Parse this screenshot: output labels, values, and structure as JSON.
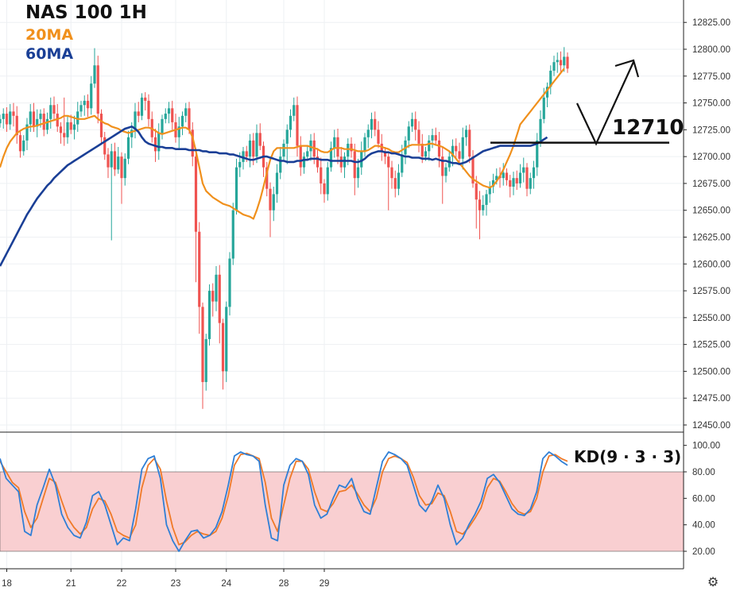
{
  "chart_title": "NAS 100 1H",
  "legend": [
    {
      "label": "20MA",
      "color": "#f0901c"
    },
    {
      "label": "60MA",
      "color": "#1a3f96"
    }
  ],
  "annotation_level": "12710",
  "kd_label": "KD(9 · 3 · 3)",
  "settings_icon": "gear-icon",
  "colors": {
    "up": "#26a69a",
    "down": "#ef5350",
    "ma20": "#f0901c",
    "ma60": "#1a3f96",
    "k_line": "#2f7fd6",
    "d_line": "#f07a28",
    "kd_zone": "#f9cfd1"
  },
  "chart_data": [
    {
      "type": "candlestick",
      "title": "NAS 100 1H",
      "y_ticks": [
        "12825.00",
        "12800.00",
        "12775.00",
        "12750.00",
        "12725.00",
        "12700.00",
        "12675.00",
        "12650.00",
        "12625.00",
        "12600.00",
        "12575.00",
        "12550.00",
        "12525.00",
        "12500.00",
        "12475.00",
        "12450.00"
      ],
      "ylim": [
        12446,
        12845
      ],
      "x_ticks": [
        {
          "label": "18",
          "t": 2
        },
        {
          "label": "21",
          "t": 21
        },
        {
          "label": "22",
          "t": 36
        },
        {
          "label": "23",
          "t": 52
        },
        {
          "label": "24",
          "t": 67
        },
        {
          "label": "28",
          "t": 84
        },
        {
          "label": "29",
          "t": 96
        }
      ],
      "closes": [
        12735,
        12740,
        12730,
        12742,
        12738,
        12720,
        12705,
        12715,
        12730,
        12742,
        12728,
        12735,
        12740,
        12725,
        12735,
        12748,
        12740,
        12728,
        12722,
        12718,
        12732,
        12725,
        12730,
        12742,
        12748,
        12752,
        12745,
        12768,
        12785,
        12740,
        12718,
        12702,
        12690,
        12705,
        12688,
        12700,
        12680,
        12698,
        12718,
        12725,
        12742,
        12738,
        12755,
        12752,
        12735,
        12718,
        12705,
        12722,
        12735,
        12740,
        12745,
        12732,
        12718,
        12728,
        12738,
        12745,
        12725,
        12700,
        12630,
        12560,
        12490,
        12530,
        12575,
        12565,
        12590,
        12545,
        12500,
        12560,
        12605,
        12650,
        12690,
        12695,
        12705,
        12700,
        12715,
        12700,
        12722,
        12710,
        12690,
        12670,
        12650,
        12665,
        12685,
        12700,
        12712,
        12725,
        12738,
        12748,
        12710,
        12690,
        12700,
        12705,
        12715,
        12700,
        12690,
        12675,
        12665,
        12690,
        12708,
        12718,
        12700,
        12690,
        12700,
        12712,
        12705,
        12680,
        12690,
        12705,
        12718,
        12725,
        12735,
        12725,
        12712,
        12705,
        12700,
        12690,
        12680,
        12670,
        12685,
        12702,
        12715,
        12728,
        12735,
        12725,
        12712,
        12700,
        12705,
        12715,
        12720,
        12715,
        12700,
        12682,
        12690,
        12700,
        12710,
        12705,
        12698,
        12718,
        12725,
        12700,
        12675,
        12660,
        12650,
        12655,
        12665,
        12672,
        12678,
        12682,
        12680,
        12685,
        12678,
        12672,
        12680,
        12675,
        12685,
        12690,
        12670,
        12680,
        12690,
        12715,
        12735,
        12755,
        12765,
        12780,
        12788,
        12790,
        12785,
        12793,
        12782
      ],
      "ma20": [
        12690,
        12700,
        12708,
        12714,
        12718,
        12722,
        12724,
        12726,
        12727,
        12728,
        12728,
        12729,
        12730,
        12731,
        12732,
        12733,
        12734,
        12735,
        12736,
        12738,
        12738,
        12737,
        12736,
        12735,
        12735,
        12735,
        12736,
        12737,
        12738,
        12735,
        12733,
        12731,
        12730,
        12728,
        12727,
        12726,
        12724,
        12723,
        12722,
        12723,
        12724,
        12725,
        12726,
        12727,
        12727,
        12726,
        12724,
        12722,
        12721,
        12722,
        12723,
        12724,
        12725,
        12726,
        12727,
        12727,
        12725,
        12718,
        12705,
        12690,
        12675,
        12668,
        12665,
        12662,
        12660,
        12658,
        12656,
        12655,
        12654,
        12652,
        12650,
        12648,
        12646,
        12645,
        12644,
        12642,
        12650,
        12660,
        12672,
        12685,
        12697,
        12705,
        12708,
        12708,
        12708,
        12708,
        12708,
        12708,
        12709,
        12710,
        12710,
        12710,
        12709,
        12708,
        12707,
        12705,
        12704,
        12704,
        12706,
        12708,
        12708,
        12708,
        12707,
        12707,
        12707,
        12706,
        12705,
        12705,
        12705,
        12706,
        12708,
        12710,
        12710,
        12709,
        12708,
        12707,
        12705,
        12704,
        12704,
        12706,
        12708,
        12710,
        12711,
        12711,
        12711,
        12711,
        12711,
        12712,
        12712,
        12711,
        12710,
        12709,
        12707,
        12705,
        12702,
        12698,
        12694,
        12690,
        12686,
        12682,
        12679,
        12677,
        12675,
        12673,
        12672,
        12671,
        12673,
        12677,
        12682,
        12688,
        12695,
        12702,
        12710,
        12720,
        12730,
        12734,
        12738,
        12742,
        12746,
        12750,
        12754,
        12758,
        12762,
        12766,
        12770,
        12774,
        12778,
        12782
      ],
      "ma60": [
        12598,
        12604,
        12610,
        12616,
        12622,
        12628,
        12634,
        12640,
        12646,
        12651,
        12656,
        12661,
        12665,
        12669,
        12673,
        12676,
        12680,
        12683,
        12686,
        12689,
        12692,
        12694,
        12696,
        12698,
        12700,
        12702,
        12704,
        12706,
        12708,
        12710,
        12712,
        12714,
        12716,
        12718,
        12720,
        12722,
        12724,
        12726,
        12727,
        12728,
        12726,
        12723,
        12718,
        12714,
        12712,
        12711,
        12710,
        12709,
        12709,
        12708,
        12708,
        12708,
        12707,
        12707,
        12707,
        12707,
        12706,
        12706,
        12706,
        12706,
        12705,
        12705,
        12704,
        12704,
        12704,
        12703,
        12703,
        12703,
        12702,
        12702,
        12701,
        12700,
        12699,
        12698,
        12697,
        12697,
        12698,
        12699,
        12700,
        12700,
        12699,
        12698,
        12697,
        12696,
        12696,
        12695,
        12695,
        12695,
        12696,
        12696,
        12697,
        12697,
        12698,
        12698,
        12698,
        12697,
        12697,
        12697,
        12696,
        12696,
        12696,
        12696,
        12696,
        12696,
        12696,
        12695,
        12695,
        12696,
        12698,
        12701,
        12703,
        12704,
        12705,
        12705,
        12704,
        12704,
        12703,
        12703,
        12702,
        12701,
        12700,
        12700,
        12699,
        12699,
        12699,
        12698,
        12698,
        12698,
        12697,
        12698,
        12697,
        12696,
        12696,
        12695,
        12694,
        12694,
        12693,
        12694,
        12695,
        12697,
        12699,
        12701,
        12703,
        12705,
        12706,
        12707,
        12708,
        12709,
        12710,
        12710,
        12710,
        12710,
        12710,
        12710,
        12710,
        12710,
        12710,
        12710,
        12711,
        12712,
        12714,
        12716,
        12718
      ],
      "horizontal_level": 12713
    },
    {
      "type": "line",
      "title": "KD(9 · 3 · 3)",
      "y_ticks": [
        "100.00",
        "80.00",
        "60.00",
        "40.00",
        "20.00"
      ],
      "ylim": [
        0,
        110
      ],
      "shaded_zone": [
        20,
        80
      ],
      "series": [
        {
          "name": "K",
          "values": [
            90,
            75,
            70,
            65,
            35,
            32,
            55,
            68,
            82,
            70,
            48,
            38,
            32,
            30,
            42,
            62,
            65,
            55,
            40,
            25,
            30,
            28,
            52,
            82,
            90,
            92,
            75,
            40,
            28,
            20,
            28,
            35,
            36,
            30,
            32,
            38,
            50,
            70,
            92,
            95,
            93,
            92,
            88,
            55,
            30,
            28,
            70,
            85,
            90,
            88,
            78,
            55,
            45,
            48,
            60,
            70,
            68,
            75,
            60,
            50,
            48,
            68,
            88,
            95,
            93,
            90,
            85,
            70,
            55,
            50,
            58,
            70,
            60,
            40,
            25,
            30,
            40,
            48,
            58,
            75,
            78,
            72,
            62,
            52,
            48,
            47,
            52,
            65,
            90,
            95,
            92,
            88,
            85
          ]
        },
        {
          "name": "D",
          "values": [
            88,
            80,
            72,
            68,
            50,
            38,
            45,
            60,
            75,
            72,
            58,
            45,
            38,
            33,
            38,
            52,
            60,
            58,
            48,
            35,
            32,
            30,
            40,
            68,
            85,
            90,
            82,
            58,
            38,
            25,
            27,
            32,
            35,
            33,
            32,
            35,
            45,
            62,
            85,
            93,
            94,
            92,
            90,
            72,
            45,
            35,
            55,
            75,
            88,
            88,
            82,
            65,
            52,
            50,
            56,
            65,
            66,
            70,
            63,
            55,
            50,
            60,
            80,
            90,
            92,
            90,
            87,
            76,
            62,
            55,
            56,
            64,
            62,
            50,
            35,
            33,
            38,
            45,
            53,
            68,
            75,
            73,
            65,
            56,
            50,
            48,
            50,
            60,
            80,
            92,
            93,
            90,
            88
          ]
        }
      ],
      "x_ticks": [
        "18",
        "21",
        "22",
        "23",
        "24",
        "28",
        "29"
      ]
    }
  ]
}
